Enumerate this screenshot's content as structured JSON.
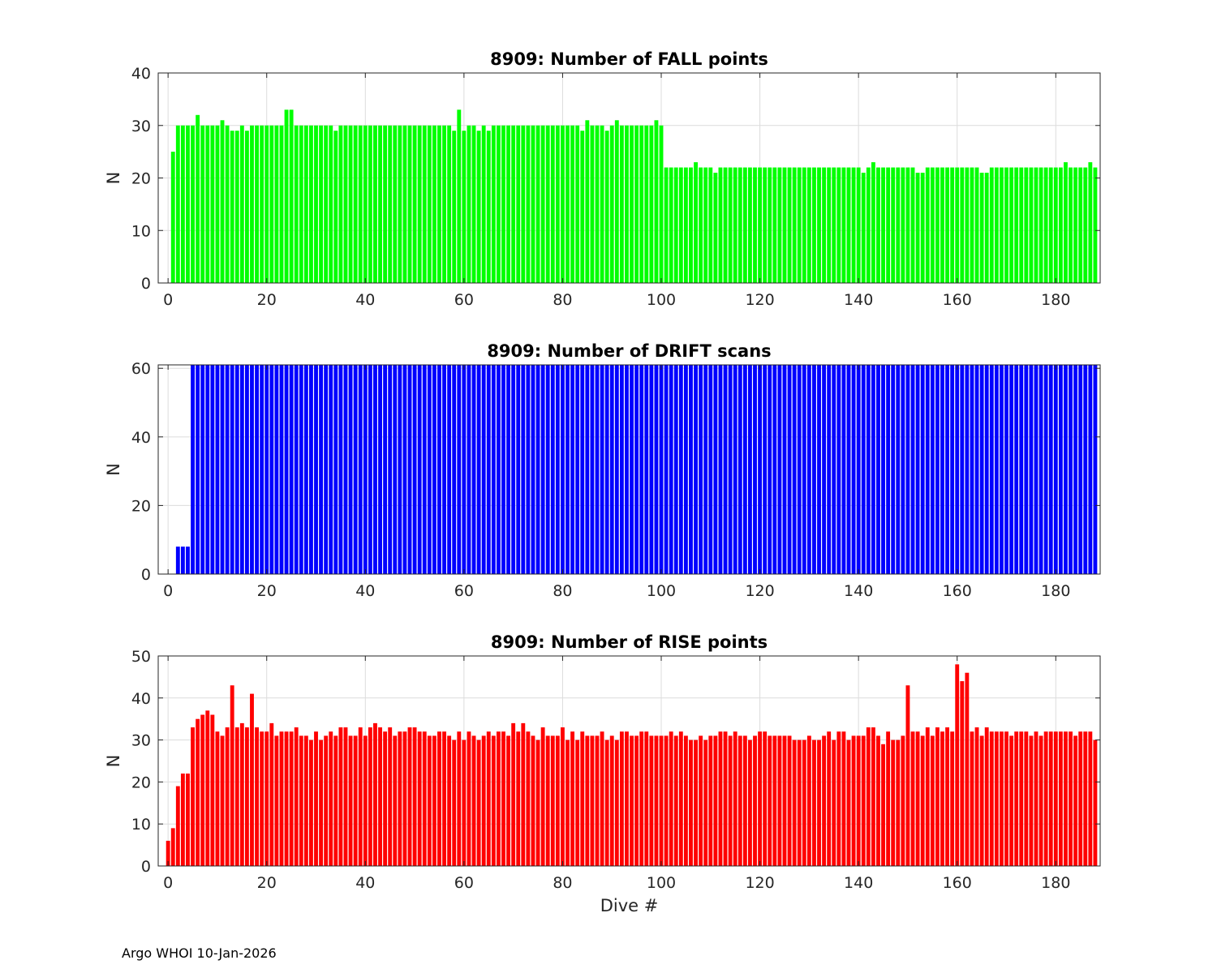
{
  "footer": {
    "text": "Argo WHOI 10-Jan-2026"
  },
  "colors": {
    "fall": "#00ff00",
    "drift": "#0000ff",
    "rise": "#ff0000",
    "axis": "#262626",
    "grid": "#dcdcdc"
  },
  "chart_data": [
    {
      "type": "bar",
      "title": "8909: Number of FALL points",
      "xlabel": "",
      "ylabel": "N",
      "xlim": [
        -2,
        189
      ],
      "ylim": [
        0,
        40
      ],
      "xticks": [
        0,
        20,
        40,
        60,
        80,
        100,
        120,
        140,
        160,
        180
      ],
      "yticks": [
        0,
        10,
        20,
        30,
        40
      ],
      "grid": true,
      "color": "#00ff00",
      "x_start": 1,
      "values": [
        25,
        30,
        30,
        30,
        30,
        32,
        30,
        30,
        30,
        30,
        31,
        30,
        29,
        29,
        30,
        29,
        30,
        30,
        30,
        30,
        30,
        30,
        30,
        33,
        33,
        30,
        30,
        30,
        30,
        30,
        30,
        30,
        30,
        29,
        30,
        30,
        30,
        30,
        30,
        30,
        30,
        30,
        30,
        30,
        30,
        30,
        30,
        30,
        30,
        30,
        30,
        30,
        30,
        30,
        30,
        30,
        30,
        29,
        33,
        29,
        30,
        30,
        29,
        30,
        29,
        30,
        30,
        30,
        30,
        30,
        30,
        30,
        30,
        30,
        30,
        30,
        30,
        30,
        30,
        30,
        30,
        30,
        30,
        29,
        31,
        30,
        30,
        30,
        29,
        30,
        31,
        30,
        30,
        30,
        30,
        30,
        30,
        30,
        31,
        30,
        22,
        22,
        22,
        22,
        22,
        22,
        23,
        22,
        22,
        22,
        21,
        22,
        22,
        22,
        22,
        22,
        22,
        22,
        22,
        22,
        22,
        22,
        22,
        22,
        22,
        22,
        22,
        22,
        22,
        22,
        22,
        22,
        22,
        22,
        22,
        22,
        22,
        22,
        22,
        22,
        21,
        22,
        23,
        22,
        22,
        22,
        22,
        22,
        22,
        22,
        22,
        21,
        21,
        22,
        22,
        22,
        22,
        22,
        22,
        22,
        22,
        22,
        22,
        22,
        21,
        21,
        22,
        22,
        22,
        22,
        22,
        22,
        22,
        22,
        22,
        22,
        22,
        22,
        22,
        22,
        22,
        23,
        22,
        22,
        22,
        22,
        23,
        22
      ]
    },
    {
      "type": "bar",
      "title": "8909: Number of DRIFT scans",
      "xlabel": "",
      "ylabel": "N",
      "xlim": [
        -2,
        189
      ],
      "ylim": [
        0,
        61
      ],
      "xticks": [
        0,
        20,
        40,
        60,
        80,
        100,
        120,
        140,
        160,
        180
      ],
      "yticks": [
        0,
        20,
        40,
        60
      ],
      "grid": true,
      "color": "#0000ff",
      "x_start": 1,
      "values": [
        0,
        8,
        8,
        8,
        61,
        61,
        61,
        61,
        61,
        61,
        61,
        61,
        61,
        61,
        61,
        61,
        61,
        61,
        61,
        61,
        61,
        61,
        61,
        61,
        61,
        61,
        61,
        61,
        61,
        61,
        61,
        61,
        61,
        61,
        61,
        61,
        61,
        61,
        61,
        61,
        61,
        61,
        61,
        61,
        61,
        61,
        61,
        61,
        61,
        61,
        61,
        61,
        61,
        61,
        61,
        61,
        61,
        61,
        61,
        61,
        61,
        61,
        61,
        61,
        61,
        61,
        61,
        61,
        61,
        61,
        61,
        61,
        61,
        61,
        61,
        61,
        61,
        61,
        61,
        61,
        61,
        61,
        61,
        61,
        61,
        61,
        61,
        61,
        61,
        61,
        61,
        61,
        61,
        61,
        61,
        61,
        61,
        61,
        61,
        61,
        61,
        61,
        61,
        61,
        61,
        61,
        61,
        61,
        61,
        61,
        61,
        61,
        61,
        61,
        61,
        61,
        61,
        61,
        61,
        61,
        61,
        61,
        61,
        61,
        61,
        61,
        61,
        61,
        61,
        61,
        61,
        61,
        61,
        61,
        61,
        61,
        61,
        61,
        61,
        61,
        61,
        61,
        61,
        61,
        61,
        61,
        61,
        61,
        61,
        61,
        61,
        61,
        61,
        61,
        61,
        61,
        61,
        61,
        61,
        61,
        61,
        61,
        61,
        61,
        61,
        61,
        61,
        61,
        61,
        61,
        61,
        61,
        61,
        61,
        61,
        61,
        61,
        61,
        61,
        61,
        61,
        61,
        61,
        61,
        61,
        61,
        61,
        61
      ]
    },
    {
      "type": "bar",
      "title": "8909: Number of RISE points",
      "xlabel": "Dive #",
      "ylabel": "N",
      "xlim": [
        -2,
        189
      ],
      "ylim": [
        0,
        50
      ],
      "xticks": [
        0,
        20,
        40,
        60,
        80,
        100,
        120,
        140,
        160,
        180
      ],
      "yticks": [
        0,
        10,
        20,
        30,
        40,
        50
      ],
      "grid": true,
      "color": "#ff0000",
      "x_start": 0,
      "values": [
        6,
        9,
        19,
        22,
        22,
        33,
        35,
        36,
        37,
        36,
        32,
        31,
        33,
        43,
        33,
        34,
        33,
        41,
        33,
        32,
        32,
        34,
        31,
        32,
        32,
        32,
        33,
        31,
        31,
        30,
        32,
        30,
        31,
        32,
        31,
        33,
        33,
        31,
        31,
        33,
        31,
        33,
        34,
        33,
        32,
        33,
        31,
        32,
        32,
        33,
        33,
        32,
        32,
        31,
        31,
        32,
        32,
        31,
        30,
        32,
        30,
        32,
        31,
        30,
        31,
        32,
        31,
        32,
        32,
        31,
        34,
        32,
        34,
        32,
        31,
        30,
        33,
        31,
        31,
        31,
        33,
        30,
        32,
        30,
        32,
        31,
        31,
        31,
        32,
        30,
        31,
        30,
        32,
        32,
        31,
        31,
        32,
        32,
        31,
        31,
        31,
        31,
        32,
        31,
        32,
        31,
        30,
        30,
        31,
        30,
        31,
        31,
        32,
        32,
        31,
        32,
        31,
        31,
        30,
        31,
        32,
        32,
        31,
        31,
        31,
        31,
        31,
        30,
        30,
        30,
        31,
        30,
        30,
        31,
        32,
        30,
        32,
        32,
        30,
        31,
        31,
        31,
        33,
        33,
        31,
        29,
        32,
        30,
        30,
        31,
        43,
        32,
        32,
        31,
        33,
        31,
        33,
        32,
        33,
        32,
        48,
        44,
        46,
        32,
        33,
        31,
        33,
        32,
        32,
        32,
        32,
        31,
        32,
        32,
        32,
        31,
        32,
        31,
        32,
        32,
        32,
        32,
        32,
        32,
        31,
        32,
        32,
        32,
        30
      ]
    }
  ]
}
